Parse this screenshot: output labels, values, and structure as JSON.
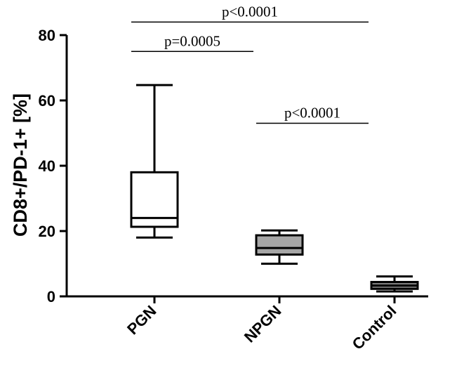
{
  "chart_data": {
    "type": "boxplot",
    "title": "",
    "xlabel": "",
    "ylabel": "CD8+/PD-1+ [%]",
    "ylim": [
      0,
      80
    ],
    "yticks": [
      "0",
      "20",
      "40",
      "60",
      "80"
    ],
    "grid": false,
    "legend": "none",
    "categories": [
      "PGN",
      "NPGN",
      "Control"
    ],
    "boxes": [
      {
        "category": "PGN",
        "min": 18,
        "q1": 21.3,
        "median": 24,
        "q3": 38,
        "max": 64.7,
        "fill": "#ffffff"
      },
      {
        "category": "NPGN",
        "min": 10,
        "q1": 12.8,
        "median": 14.8,
        "q3": 18.7,
        "max": 20.2,
        "fill": "#a6a6a6"
      },
      {
        "category": "Control",
        "min": 1.5,
        "q1": 2.3,
        "median": 3.3,
        "q3": 4.4,
        "max": 6.1,
        "fill": "#808080"
      }
    ],
    "annotations": [
      {
        "text": "p<0.0001",
        "from": "PGN",
        "to": "Control",
        "y": 84
      },
      {
        "text": "p=0.0005",
        "from": "PGN",
        "to": "NPGN",
        "y": 75
      },
      {
        "text": "p<0.0001",
        "from": "NPGN",
        "to": "Control",
        "y": 53
      }
    ]
  }
}
